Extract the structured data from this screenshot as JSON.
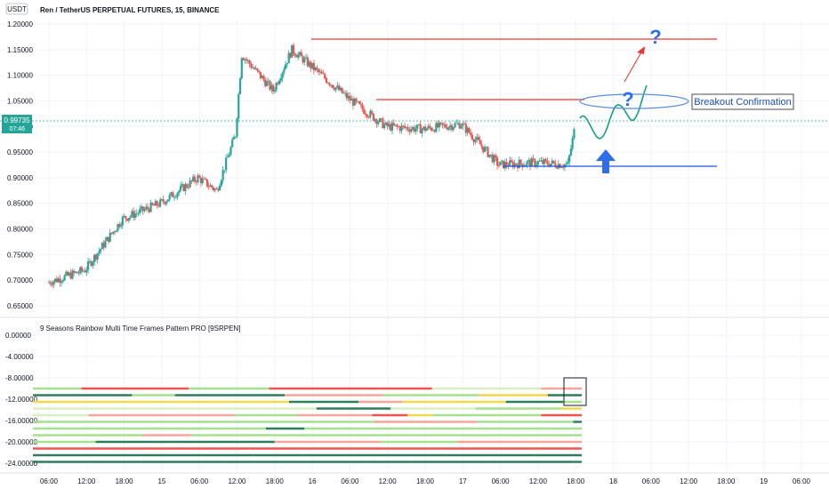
{
  "header": {
    "currency_badge": "USDT",
    "symbol_title": "Ren / TetherUS PERPETUAL FUTURES, 15, BINANCE"
  },
  "price_badge": {
    "price": "0.99735",
    "countdown": "07:46"
  },
  "indicator": {
    "title": "9 Seasons Rainbow Multi Time Frames Pattern PRO [9SRPEN]"
  },
  "annotations": {
    "breakout_label": "Breakout Confirmation",
    "question_mark_upper": "?",
    "question_mark_lower": "?"
  },
  "colors": {
    "grid": "#f0f3fa",
    "up": "#26a69a",
    "down": "#ef5350",
    "resistance": "#e53935",
    "support": "#1e53e5",
    "projection": "#14a085",
    "ellipse": "#5b8fd9",
    "label_text": "#1e4fb0",
    "question": "#2f6ee8",
    "badge_bg": "#26a69a"
  },
  "chart_data": [
    {
      "type": "candlestick",
      "title": "Ren / TetherUS PERPETUAL FUTURES, 15, BINANCE",
      "x_ticks": [
        "06:00",
        "12:00",
        "18:00",
        "15",
        "06:00",
        "12:00",
        "18:00",
        "16",
        "06:00",
        "12:00",
        "18:00",
        "17",
        "06:00",
        "12:00",
        "18:00",
        "18",
        "06:00",
        "12:00",
        "18:00",
        "19",
        "06:00"
      ],
      "y_ticks": [
        "1.20000",
        "1.15000",
        "1.10000",
        "1.05000",
        "1.00000",
        "0.95000",
        "0.90000",
        "0.85000",
        "0.80000",
        "0.75000",
        "0.70000",
        "0.65000"
      ],
      "ylim": [
        0.625,
        1.205
      ],
      "last_price": 0.99735,
      "approx_price_path": [
        {
          "t": "14 06:00",
          "close": 0.695
        },
        {
          "t": "14 12:00",
          "close": 0.72
        },
        {
          "t": "14 18:00",
          "close": 0.82
        },
        {
          "t": "15 00:00",
          "close": 0.85
        },
        {
          "t": "15 06:00",
          "close": 0.9
        },
        {
          "t": "15 09:00",
          "close": 0.875
        },
        {
          "t": "15 12:00",
          "close": 0.985
        },
        {
          "t": "15 13:00",
          "close": 1.14
        },
        {
          "t": "15 18:00",
          "close": 1.07
        },
        {
          "t": "15 21:00",
          "close": 1.15
        },
        {
          "t": "16 06:00",
          "close": 1.055
        },
        {
          "t": "16 12:00",
          "close": 1.0
        },
        {
          "t": "16 18:00",
          "close": 0.995
        },
        {
          "t": "17 00:00",
          "close": 1.005
        },
        {
          "t": "17 06:00",
          "close": 0.925
        },
        {
          "t": "17 12:00",
          "close": 0.93
        },
        {
          "t": "17 17:00",
          "close": 0.925
        },
        {
          "t": "17 18:00",
          "close": 0.99
        }
      ],
      "resistance_1": 1.15,
      "resistance_2": 1.035,
      "support": 0.912
    },
    {
      "type": "heatmap",
      "title": "9 Seasons Rainbow Multi Time Frames Pattern PRO [9SRPEN]",
      "y_ticks": [
        "0.00000",
        "-4.00000",
        "-8.00000",
        "-12.00000",
        "-16.00000",
        "-20.00000",
        "-24.00000"
      ],
      "ylim": [
        -25,
        1.5
      ],
      "row_levels": [
        -10,
        -11.25,
        -12.5,
        -13.75,
        -15,
        -16.25,
        -17.5,
        -18.75,
        -20,
        -21.25,
        -22.5,
        -23.75
      ]
    }
  ]
}
